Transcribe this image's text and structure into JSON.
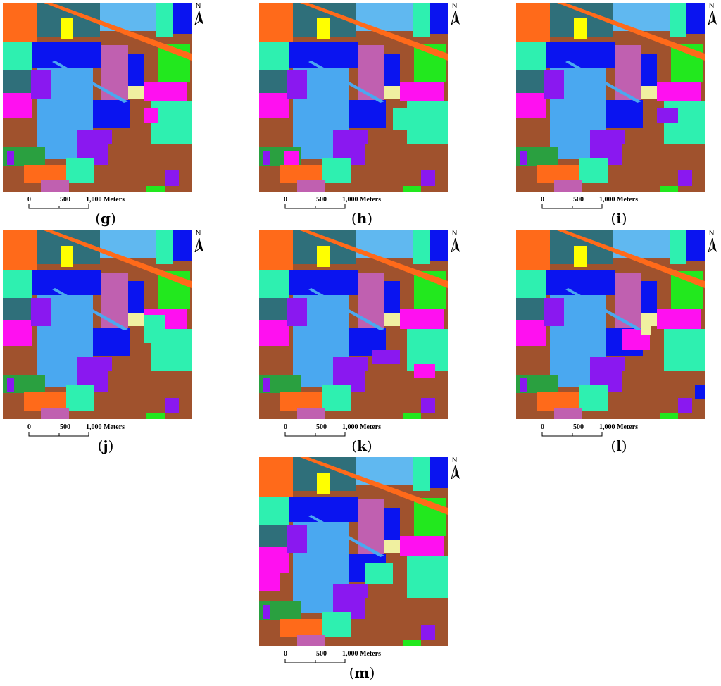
{
  "scale": {
    "labels": [
      "0",
      "500",
      "1,000 Meters"
    ]
  },
  "north_label": "N",
  "panels": [
    {
      "id": "g",
      "caption_open": "(",
      "caption_letter": "g",
      "caption_close": ")"
    },
    {
      "id": "h",
      "caption_open": "(",
      "caption_letter": "h",
      "caption_close": ")"
    },
    {
      "id": "i",
      "caption_open": "(",
      "caption_letter": "i",
      "caption_close": ")"
    },
    {
      "id": "j",
      "caption_open": "(",
      "caption_letter": "j",
      "caption_close": ")"
    },
    {
      "id": "k",
      "caption_open": "(",
      "caption_letter": "k",
      "caption_close": ")"
    },
    {
      "id": "l",
      "caption_open": "(",
      "caption_letter": "l",
      "caption_close": ")"
    },
    {
      "id": "m",
      "caption_open": "(",
      "caption_letter": "m",
      "caption_close": ")"
    }
  ],
  "class_colors": {
    "background_soil": "#a0522d",
    "orange": "#ff6a1a",
    "dark_teal": "#2f6f7a",
    "yellow": "#ffff00",
    "blue": "#0a14f0",
    "light_blue": "#4aa8f0",
    "orchid": "#c060b0",
    "green": "#22e81e",
    "aquamarine": "#2ef0b0",
    "magenta": "#ff10f0",
    "purple": "#8a18f0",
    "medium_green": "#2aa040",
    "sky": "#60b8f0",
    "pale_yellow": "#f0f0a0"
  }
}
